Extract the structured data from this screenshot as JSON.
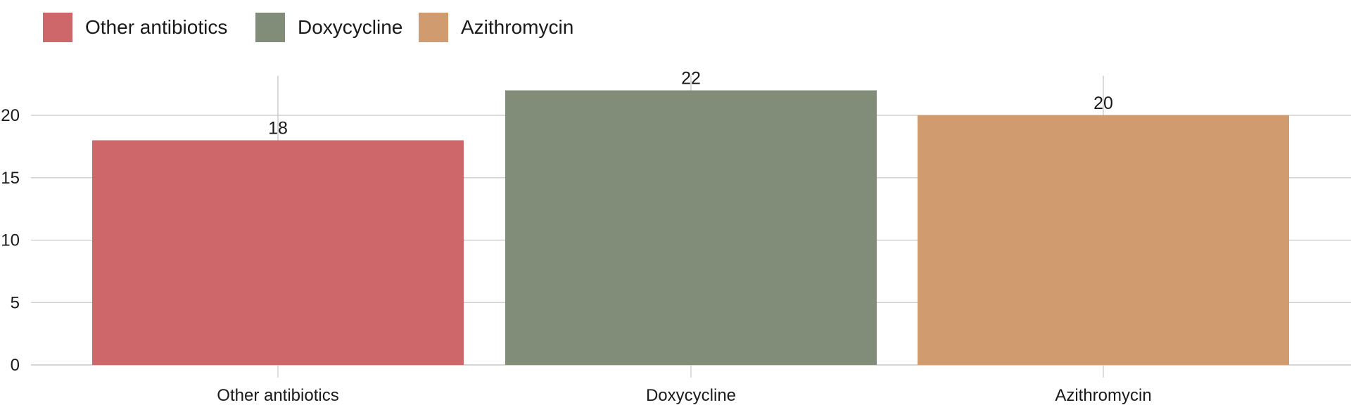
{
  "chart_data": {
    "type": "bar",
    "title": "",
    "xlabel": "",
    "ylabel": "",
    "categories": [
      "Other antibiotics",
      "Doxycycline",
      "Azithromycin"
    ],
    "values": [
      18,
      22,
      20
    ],
    "data_labels": [
      "18",
      "22",
      "20"
    ],
    "colors": [
      "#cd6769",
      "#818d79",
      "#cf9b6f"
    ],
    "ylim": [
      0,
      23
    ],
    "yticks": [
      0,
      5,
      10,
      15,
      20
    ],
    "ytick_labels": [
      "0",
      "5",
      "10",
      "15",
      "20"
    ],
    "grid": true,
    "legend": {
      "placement": "top-left",
      "entries": [
        "Other antibiotics",
        "Doxycycline",
        "Azithromycin"
      ]
    }
  }
}
